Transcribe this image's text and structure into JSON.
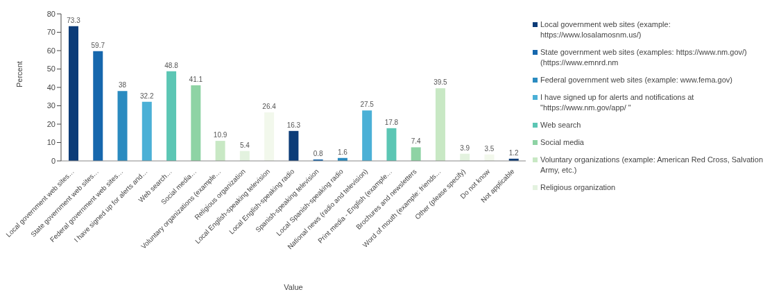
{
  "chart_data": {
    "type": "bar",
    "xlabel": "Value",
    "ylabel": "Percent",
    "categories": [
      "Local government web sites…",
      "State government web sites…",
      "Federal government web sites…",
      "I have signed up for alerts and…",
      "Web search…",
      "Social media…",
      "Voluntary organizations (example…",
      "Religious organization",
      "Local English-speaking television",
      "Local English-speaking radio",
      "Spanish-speaking television",
      "Local Spanish-speaking radio",
      "National news (radio and television)",
      "Print media - English (example…",
      "Brochures and newsletters",
      "Word of mouth (example: friends…",
      "Other (please specify)",
      "Do not know",
      "Not applicable"
    ],
    "values": [
      73.3,
      59.7,
      38,
      32.2,
      48.8,
      41.1,
      10.9,
      5.4,
      26.4,
      16.3,
      0.8,
      1.6,
      27.5,
      17.8,
      7.4,
      39.5,
      3.9,
      3.5,
      1.2
    ],
    "colors": [
      "#0c3c78",
      "#1667ad",
      "#2a8bc0",
      "#4bb0d6",
      "#5cc6b4",
      "#8ed3a4",
      "#c8e8c4",
      "#e3f2df",
      "#f2f8ec",
      "#0c3c78",
      "#1667ad",
      "#2a8bc0",
      "#4bb0d6",
      "#5cc6b4",
      "#8ed3a4",
      "#c8e8c4",
      "#e3f2df",
      "#f2f8ec",
      "#0c3c78"
    ],
    "ylim": [
      0,
      80
    ],
    "yticks": [
      0,
      10,
      20,
      30,
      40,
      50,
      60,
      70,
      80
    ],
    "grid": false,
    "data_labels": true,
    "annotations": [
      "Local government web sites (example: https://www.losalamosnm.us/)",
      "State government web sites (examples: https://www.nm.gov/) (https://www.emnrd.nm",
      "Federal government web sites (example: www.fema.gov)",
      "I have signed up for alerts and notifications at \"https://www.nm.gov/app/ \"",
      "Web search",
      "Social media",
      "Voluntary organizations (example: American Red Cross, Salvation Army, etc.)",
      "Religious organization"
    ]
  }
}
